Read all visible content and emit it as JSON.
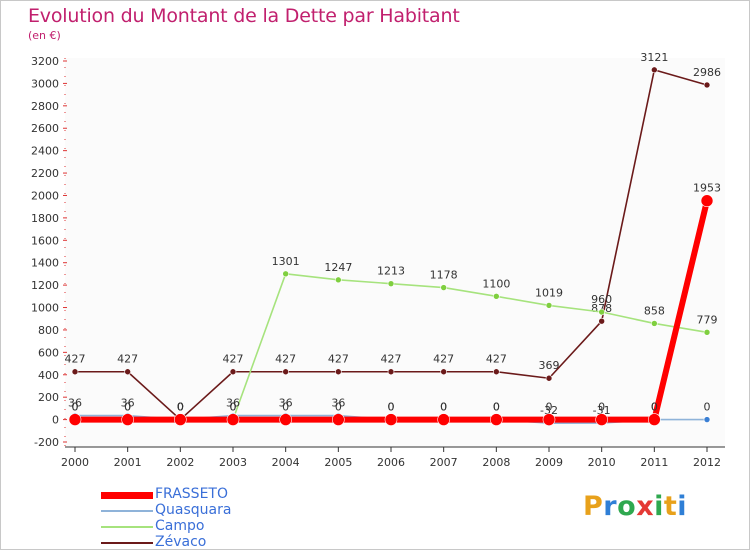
{
  "title": "Evolution du Montant de la Dette par Habitant",
  "subtitle": "(en €)",
  "logo": {
    "text": "Proxiti",
    "letter_colors": [
      "#e8a11b",
      "#2f7fd6",
      "#2fa84f",
      "#e53935",
      "#2fa84f",
      "#e8a11b",
      "#2f7fd6"
    ]
  },
  "chart_data": {
    "type": "line",
    "categories": [
      "2000",
      "2001",
      "2002",
      "2003",
      "2004",
      "2005",
      "2006",
      "2007",
      "2008",
      "2009",
      "2010",
      "2011",
      "2012"
    ],
    "ylim": [
      -200,
      3200
    ],
    "yticks": [
      -200,
      0,
      200,
      400,
      600,
      800,
      1000,
      1200,
      1400,
      1600,
      1800,
      2000,
      2200,
      2400,
      2600,
      2800,
      3000,
      3200
    ],
    "grid": false,
    "legend_position": "bottom-left",
    "series": [
      {
        "name": "Zévaco",
        "color": "#6b1a1a",
        "marker": "#6b1a1a",
        "values": [
          427,
          427,
          0,
          427,
          427,
          427,
          427,
          427,
          427,
          369,
          878,
          3121,
          2986
        ],
        "labels": [
          "427",
          "427",
          "0",
          "427",
          "427",
          "427",
          "427",
          "427",
          "427",
          "369",
          "878",
          "3121",
          "2986"
        ]
      },
      {
        "name": "Campo",
        "color": "#a6e37d",
        "marker": "#7fcf3f",
        "values": [
          0,
          0,
          0,
          0,
          1301,
          1247,
          1213,
          1178,
          1100,
          1019,
          960,
          858,
          779
        ],
        "labels": [
          "0",
          "0",
          "0",
          "0",
          "1301",
          "1247",
          "1213",
          "1178",
          "1100",
          "1019",
          "960",
          "858",
          "779"
        ]
      },
      {
        "name": "Quasquara",
        "color": "#8fb3d9",
        "marker": "#3a7fd4",
        "values": [
          36,
          36,
          0,
          36,
          36,
          36,
          0,
          0,
          0,
          -32,
          -31,
          0,
          0
        ],
        "labels": [
          "36",
          "36",
          "0",
          "36",
          "36",
          "36",
          "0",
          "0",
          "0",
          "-32",
          "-31",
          "0",
          "0"
        ]
      },
      {
        "name": "FRASSETO",
        "color": "#ff0000",
        "marker": "#ff0000",
        "values": [
          0,
          0,
          0,
          0,
          0,
          0,
          0,
          0,
          0,
          0,
          0,
          0,
          1953
        ],
        "labels": [
          "0",
          "0",
          "0",
          "0",
          "0",
          "0",
          "0",
          "0",
          "0",
          "0",
          "0",
          "0",
          "1953"
        ]
      }
    ],
    "legend_order": [
      "FRASSETO",
      "Quasquara",
      "Campo",
      "Zévaco"
    ]
  }
}
